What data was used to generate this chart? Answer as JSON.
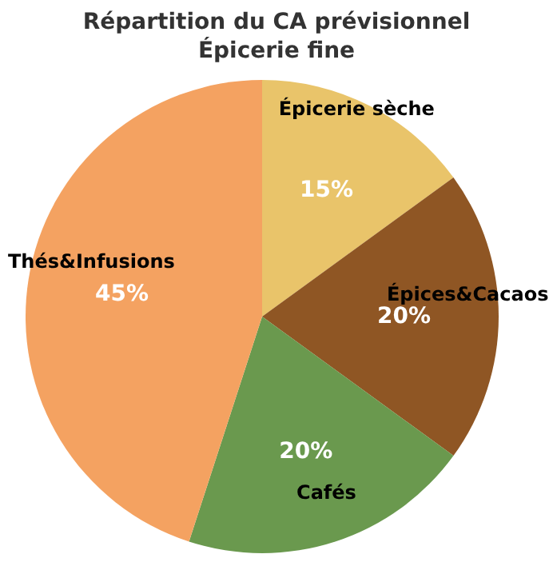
{
  "chart_data": {
    "type": "pie",
    "title": "Répartition du CA prévisionnel",
    "subtitle": "Épicerie fine",
    "categories": [
      "Épicerie sèche",
      "Épices&Cacaos",
      "Cafés",
      "Thés&Infusions"
    ],
    "values": [
      15,
      20,
      20,
      45
    ],
    "colors": [
      "#e9c46a",
      "#8f5624",
      "#6a994e",
      "#f4a261"
    ],
    "value_labels": [
      "15%",
      "20%",
      "20%",
      "45%"
    ]
  }
}
